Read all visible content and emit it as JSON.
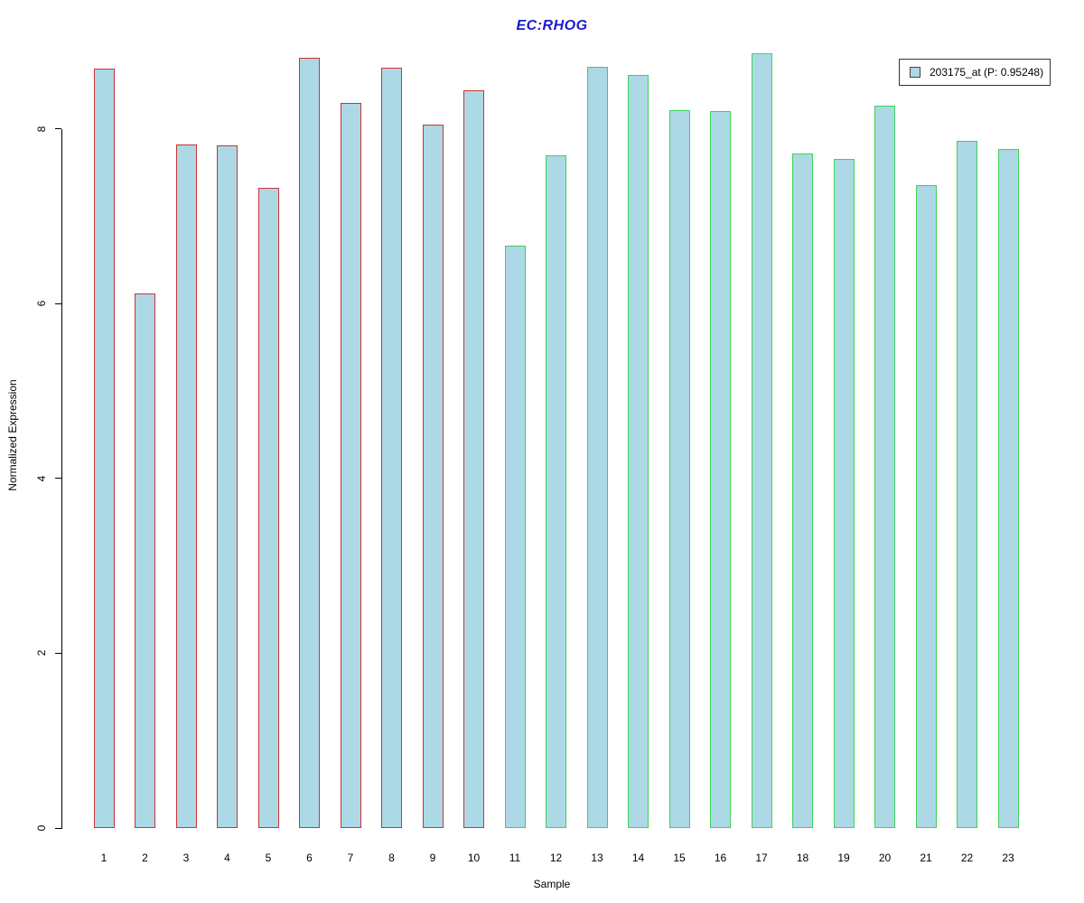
{
  "chart_data": {
    "type": "bar",
    "title": "EC:RHOG",
    "title_color": "#1a1acd",
    "xlabel": "Sample",
    "ylabel": "Normalized Expression",
    "categories": [
      "1",
      "2",
      "3",
      "4",
      "5",
      "6",
      "7",
      "8",
      "9",
      "10",
      "11",
      "12",
      "13",
      "14",
      "15",
      "16",
      "17",
      "18",
      "19",
      "20",
      "21",
      "22",
      "23"
    ],
    "values": [
      8.69,
      6.12,
      7.82,
      7.81,
      7.32,
      8.81,
      8.3,
      8.7,
      8.05,
      8.44,
      6.66,
      7.7,
      8.71,
      8.62,
      8.21,
      8.2,
      8.86,
      7.72,
      7.66,
      8.27,
      7.36,
      7.86,
      7.77
    ],
    "ylim": [
      0,
      9.05
    ],
    "yticks": [
      0,
      2,
      4,
      6,
      8
    ],
    "grid": false,
    "legend_position": "top-right",
    "legend": [
      "203175_at (P: 0.95248)"
    ],
    "bar_fill": "#add8e6",
    "bar_border_groups": [
      {
        "name": "red-outline-group",
        "range": [
          1,
          10
        ],
        "color": "#cc3333"
      },
      {
        "name": "green-outline-group",
        "range": [
          11,
          23
        ],
        "color": "#3cd455"
      }
    ],
    "legend_swatch_fill": "#add8e6",
    "legend_swatch_border": "#444444"
  }
}
